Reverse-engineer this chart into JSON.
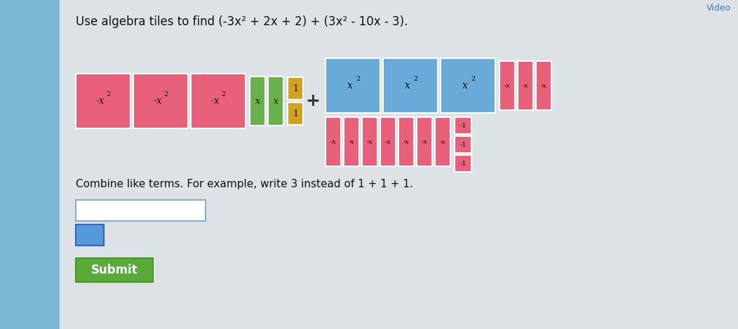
{
  "bg_gray": "#c8d0d8",
  "bg_blue_left": "#7ab8d4",
  "panel_color": "#e0e4e8",
  "pink": "#e8607a",
  "blue_tile": "#6aaad8",
  "green": "#6ab04c",
  "gold": "#d4a020",
  "white": "#ffffff",
  "dark": "#222222",
  "submit_green": "#5aaa3a",
  "input_border": "#88aacc",
  "title": "Use algebra tiles to find (-3x² + 2x + 2) + (3x² − 10x − 3).",
  "instruction": "Combine like terms. For example, write 3 instead of 1 + 1 + 1.",
  "submit_label": "Submit",
  "video_label": "Video"
}
